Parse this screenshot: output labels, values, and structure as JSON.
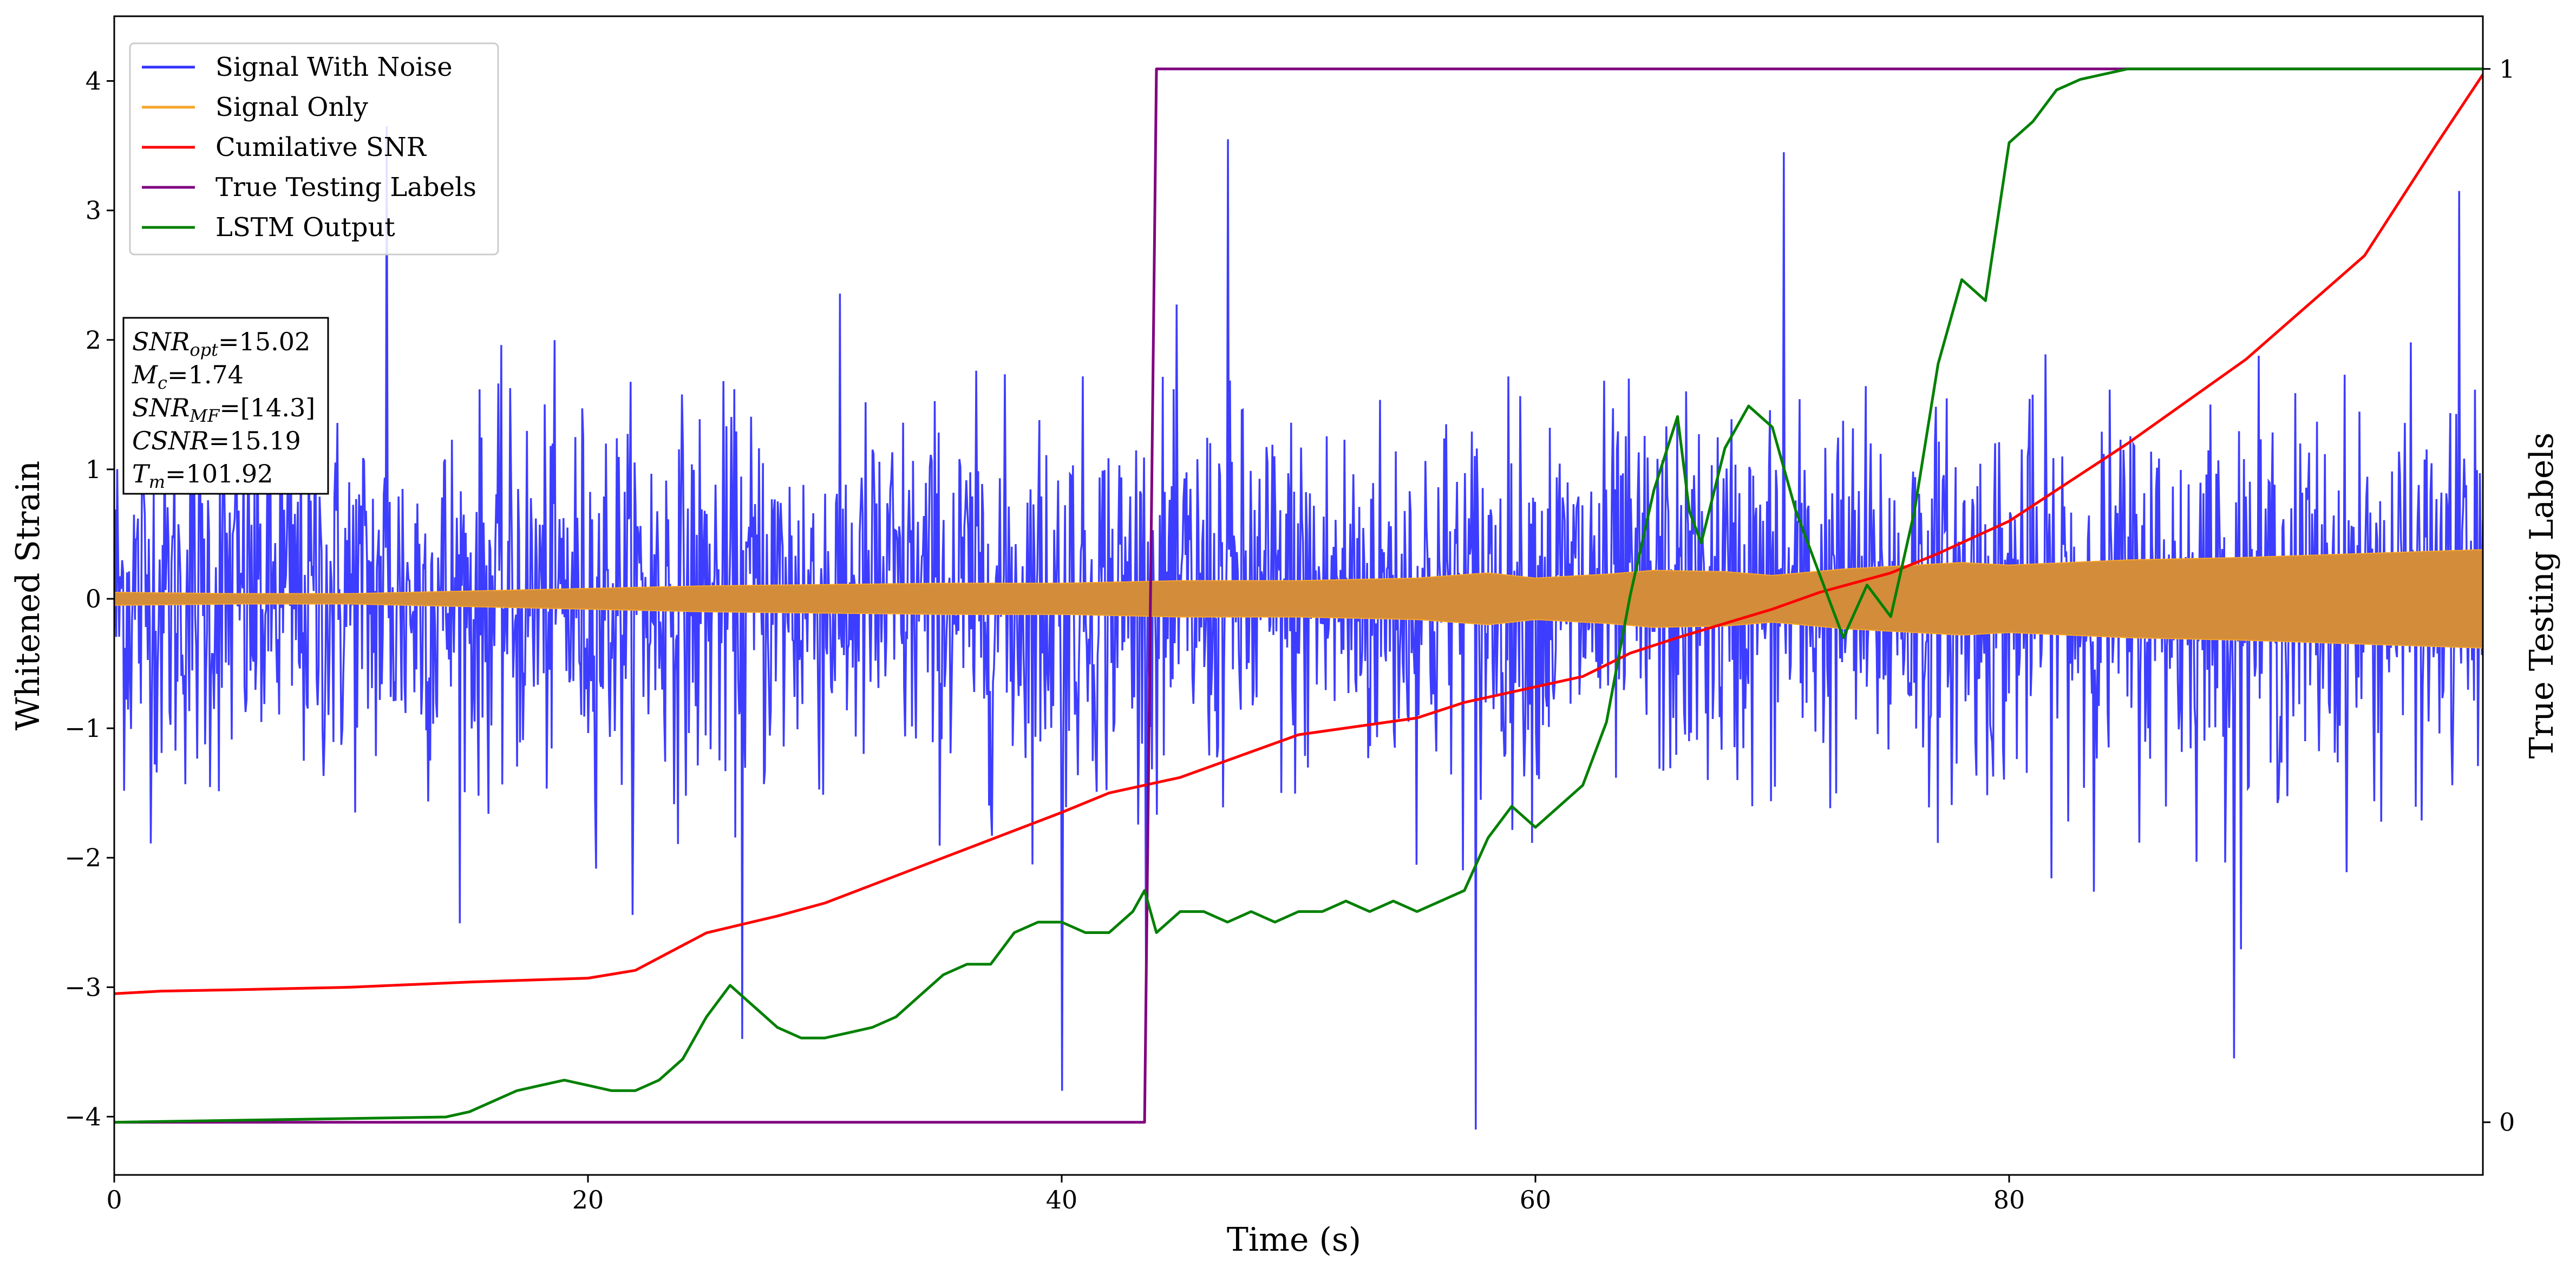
{
  "chart_data": {
    "type": "line",
    "xlabel": "Time (s)",
    "ylabel": "Whitened Strain",
    "ylabel_right": "True Testing Labels",
    "xlim": [
      0,
      100
    ],
    "ylim": [
      -4.45,
      4.5
    ],
    "ylim_right": [
      -0.05,
      1.05
    ],
    "xticks": [
      "0",
      "20",
      "40",
      "60",
      "80"
    ],
    "yticks": [
      "−4",
      "−3",
      "−2",
      "−1",
      "0",
      "1",
      "2",
      "3",
      "4"
    ],
    "yticks_right": [
      "0",
      "1"
    ],
    "grid": false,
    "legend_position": "top-left",
    "series": [
      {
        "name": "Signal With Noise",
        "color": "#3333ff",
        "kind": "noise",
        "axis": "left",
        "typical_range": [
          -1.5,
          1.5
        ],
        "spikes": [
          {
            "x": 11.5,
            "y": 3.65
          },
          {
            "x": 26.5,
            "y": -3.4
          },
          {
            "x": 40.0,
            "y": -3.8
          },
          {
            "x": 47.0,
            "y": 3.55
          },
          {
            "x": 57.5,
            "y": -4.1
          },
          {
            "x": 70.5,
            "y": 3.45
          },
          {
            "x": 89.5,
            "y": -3.55
          },
          {
            "x": 99.0,
            "y": 3.15
          }
        ]
      },
      {
        "name": "Signal Only",
        "color": "#f5a52a",
        "fill_color": "#d38c3a",
        "kind": "envelope",
        "axis": "left",
        "x": [
          0,
          5,
          10,
          15,
          20,
          25,
          30,
          35,
          40,
          45,
          50,
          55,
          58,
          60,
          63,
          65,
          68,
          70,
          73,
          75,
          78,
          80,
          85,
          90,
          95,
          100
        ],
        "amplitude": [
          0.05,
          0.04,
          0.04,
          0.06,
          0.08,
          0.1,
          0.11,
          0.12,
          0.12,
          0.14,
          0.14,
          0.16,
          0.2,
          0.16,
          0.19,
          0.22,
          0.21,
          0.18,
          0.23,
          0.25,
          0.28,
          0.26,
          0.3,
          0.32,
          0.35,
          0.38
        ]
      },
      {
        "name": "Cumilative SNR",
        "color": "#ff0000",
        "kind": "line",
        "axis": "left",
        "x": [
          0,
          2,
          5,
          10,
          15,
          20,
          22,
          25,
          28,
          30,
          35,
          40,
          42,
          45,
          50,
          55,
          57,
          60,
          62,
          64,
          66,
          70,
          72,
          75,
          77,
          80,
          85,
          90,
          95,
          98,
          100
        ],
        "y": [
          -3.05,
          -3.03,
          -3.02,
          -3.0,
          -2.96,
          -2.93,
          -2.87,
          -2.58,
          -2.45,
          -2.35,
          -2.0,
          -1.65,
          -1.5,
          -1.38,
          -1.05,
          -0.92,
          -0.8,
          -0.68,
          -0.6,
          -0.42,
          -0.3,
          -0.08,
          0.05,
          0.2,
          0.35,
          0.6,
          1.2,
          1.85,
          2.65,
          3.5,
          4.05
        ]
      },
      {
        "name": "True Testing Labels",
        "color": "#800080",
        "kind": "step",
        "axis": "right",
        "x": [
          0,
          43.5,
          44.0,
          100
        ],
        "y": [
          0,
          0,
          1,
          1
        ]
      },
      {
        "name": "LSTM Output",
        "color": "#008000",
        "kind": "line",
        "axis": "right",
        "x": [
          0,
          14,
          15,
          16,
          17,
          18,
          19,
          20,
          21,
          22,
          23,
          24,
          25,
          26,
          27,
          28,
          29,
          30,
          31,
          32,
          33,
          34,
          35,
          36,
          37,
          38,
          39,
          40,
          41,
          42,
          43,
          43.5,
          44,
          45,
          46,
          47,
          48,
          49,
          50,
          51,
          52,
          53,
          54,
          55,
          56,
          57,
          58,
          59,
          60,
          61,
          62,
          63,
          64,
          65,
          66,
          66.5,
          67,
          68,
          69,
          70,
          71,
          72,
          73,
          74,
          75,
          76,
          77,
          78,
          79,
          80,
          81,
          82,
          83,
          85,
          100
        ],
        "y": [
          0,
          0.005,
          0.01,
          0.02,
          0.03,
          0.035,
          0.04,
          0.035,
          0.03,
          0.03,
          0.04,
          0.06,
          0.1,
          0.13,
          0.11,
          0.09,
          0.08,
          0.08,
          0.085,
          0.09,
          0.1,
          0.12,
          0.14,
          0.15,
          0.15,
          0.18,
          0.19,
          0.19,
          0.18,
          0.18,
          0.2,
          0.22,
          0.18,
          0.2,
          0.2,
          0.19,
          0.2,
          0.19,
          0.2,
          0.2,
          0.21,
          0.2,
          0.21,
          0.2,
          0.21,
          0.22,
          0.27,
          0.3,
          0.28,
          0.3,
          0.32,
          0.38,
          0.5,
          0.6,
          0.67,
          0.58,
          0.55,
          0.64,
          0.68,
          0.66,
          0.58,
          0.52,
          0.46,
          0.51,
          0.48,
          0.58,
          0.72,
          0.8,
          0.78,
          0.93,
          0.95,
          0.98,
          0.99,
          1.0,
          1.0
        ]
      }
    ],
    "annotations": [
      {
        "base": "SNR",
        "sub": "opt",
        "value": "=15.02"
      },
      {
        "base": "M",
        "sub": "c",
        "value": "=1.74"
      },
      {
        "base": "SNR",
        "sub": "MF",
        "value": "=[14.3]"
      },
      {
        "base": "CSNR",
        "sub": "",
        "value": "=15.19"
      },
      {
        "base": "T",
        "sub": "m",
        "value": "=101.92"
      }
    ]
  }
}
